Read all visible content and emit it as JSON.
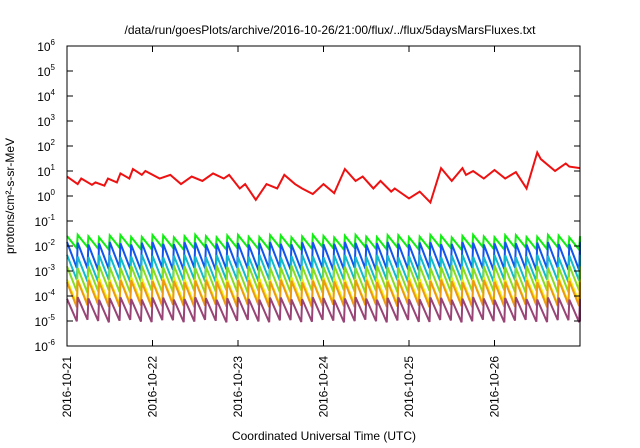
{
  "chart_data": {
    "type": "line",
    "title": "/data/run/goesPlots/archive/2016-10-26/21:00/flux/../flux/5daysMarsFluxes.txt",
    "xlabel": "Coordinated Universal Time (UTC)",
    "ylabel": "protons/cm²-s-sr-MeV",
    "yscale": "log",
    "ylim": [
      1e-06,
      1000000.0
    ],
    "xlim": [
      "2016-10-21T00:00",
      "2016-10-27T00:00"
    ],
    "x_ticks": [
      "2016-10-21",
      "2016-10-22",
      "2016-10-23",
      "2016-10-24",
      "2016-10-25",
      "2016-10-26"
    ],
    "y_ticks": [
      {
        "base": "10",
        "exp": "-6",
        "value": 1e-06
      },
      {
        "base": "10",
        "exp": "-5",
        "value": 1e-05
      },
      {
        "base": "10",
        "exp": "-4",
        "value": 0.0001
      },
      {
        "base": "10",
        "exp": "-3",
        "value": 0.001
      },
      {
        "base": "10",
        "exp": "-2",
        "value": 0.01
      },
      {
        "base": "10",
        "exp": "-1",
        "value": 0.1
      },
      {
        "base": "10",
        "exp": "0",
        "value": 1
      },
      {
        "base": "10",
        "exp": "1",
        "value": 10
      },
      {
        "base": "10",
        "exp": "2",
        "value": 100
      },
      {
        "base": "10",
        "exp": "3",
        "value": 1000
      },
      {
        "base": "10",
        "exp": "4",
        "value": 10000
      },
      {
        "base": "10",
        "exp": "5",
        "value": 100000
      },
      {
        "base": "10",
        "exp": "6",
        "value": 1000000
      }
    ],
    "grid": false,
    "legend": "none",
    "series": [
      {
        "color": "#ee1111",
        "x": [
          "2016-10-21T00:00",
          "2016-10-21T03:00",
          "2016-10-21T04:00",
          "2016-10-21T07:00",
          "2016-10-21T08:00",
          "2016-10-21T10:30",
          "2016-10-21T11:30",
          "2016-10-21T14:00",
          "2016-10-21T15:00",
          "2016-10-21T17:30",
          "2016-10-21T18:30",
          "2016-10-21T21:00",
          "2016-10-21T22:00",
          "2016-10-22T02:00",
          "2016-10-22T05:00",
          "2016-10-22T08:00",
          "2016-10-22T11:00",
          "2016-10-22T14:00",
          "2016-10-22T17:00",
          "2016-10-22T20:00",
          "2016-10-22T21:30",
          "2016-10-23T00:30",
          "2016-10-23T02:00",
          "2016-10-23T05:00",
          "2016-10-23T08:00",
          "2016-10-23T11:00",
          "2016-10-23T13:00",
          "2016-10-23T16:00",
          "2016-10-23T18:00",
          "2016-10-23T21:00",
          "2016-10-24T00:00",
          "2016-10-24T03:00",
          "2016-10-24T06:00",
          "2016-10-24T09:00",
          "2016-10-24T11:00",
          "2016-10-24T14:00",
          "2016-10-24T16:00",
          "2016-10-24T19:00",
          "2016-10-24T20:00",
          "2016-10-25T00:00",
          "2016-10-25T03:00",
          "2016-10-25T06:00",
          "2016-10-25T09:00",
          "2016-10-25T12:00",
          "2016-10-25T15:00",
          "2016-10-25T16:00",
          "2016-10-25T18:00",
          "2016-10-25T21:00",
          "2016-10-26T00:00",
          "2016-10-26T03:00",
          "2016-10-26T06:00",
          "2016-10-26T09:00",
          "2016-10-26T12:00",
          "2016-10-26T13:00",
          "2016-10-26T17:00",
          "2016-10-26T20:00",
          "2016-10-26T21:00",
          "2016-10-27T00:00"
        ],
        "y": [
          6,
          3,
          5,
          2.8,
          3.5,
          2.6,
          5,
          3.5,
          8,
          5,
          12,
          7,
          10,
          5,
          7,
          3,
          6,
          4,
          8,
          5,
          7,
          2,
          3,
          0.7,
          3,
          2,
          7,
          3,
          2,
          1.2,
          3,
          1.3,
          12,
          4,
          6,
          2,
          4,
          1.5,
          2,
          0.8,
          1.5,
          0.55,
          13,
          4,
          13,
          7,
          10,
          5,
          11,
          5,
          9,
          2,
          55,
          30,
          10,
          20,
          15,
          13
        ]
      },
      {
        "color": "#11ee11",
        "pattern": "sawtooth",
        "period_hours": 3,
        "high": 0.025,
        "low": 0.008
      },
      {
        "color": "#1155ee",
        "pattern": "sawtooth",
        "period_hours": 3,
        "high": 0.013,
        "low": 0.0012
      },
      {
        "color": "#11bbcc",
        "pattern": "sawtooth",
        "period_hours": 3,
        "high": 0.004,
        "low": 0.0004
      },
      {
        "color": "#88dd22",
        "pattern": "sawtooth",
        "period_hours": 3,
        "high": 0.0015,
        "low": 0.00015
      },
      {
        "color": "#eeee11",
        "pattern": "sawtooth",
        "period_hours": 3,
        "high": 0.0005,
        "low": 5e-05
      },
      {
        "color": "#ee9911",
        "pattern": "sawtooth",
        "period_hours": 3,
        "high": 0.0004,
        "low": 4e-05
      },
      {
        "color": "#994477",
        "pattern": "sawtooth",
        "period_hours": 3,
        "high": 8e-05,
        "low": 1e-05
      }
    ]
  }
}
